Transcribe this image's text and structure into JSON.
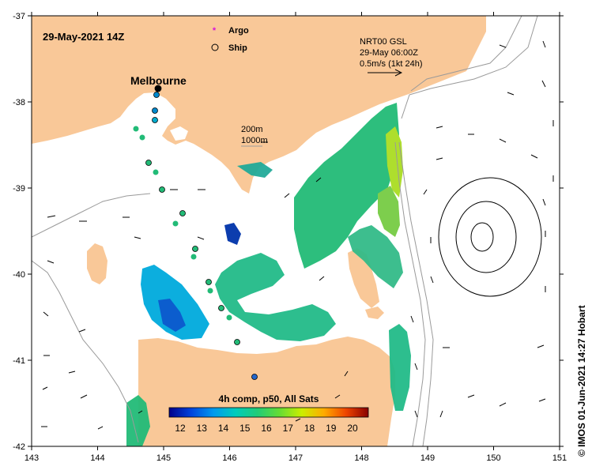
{
  "map": {
    "date_label": "29-May-2021 14Z",
    "city_label": "Melbourne",
    "x_ticks": [
      "143",
      "144",
      "145",
      "146",
      "147",
      "148",
      "149",
      "150",
      "151"
    ],
    "y_ticks": [
      "-37",
      "-38",
      "-39",
      "-40",
      "-41",
      "-42"
    ],
    "credit": "© IMOS 01-Jun-2021 14:27 Hobart",
    "colors": {
      "land": "#f9c898",
      "ocean": "#ffffff",
      "isobath": "#9a9a9a",
      "argo": "#d814d8",
      "ship": "#000000"
    }
  },
  "legend": {
    "argo_label": "Argo",
    "ship_label": "Ship",
    "isobath_200": "200m",
    "isobath_1000": "1000m"
  },
  "current_key": {
    "line1": "NRT00 GSL",
    "line2": "29-May 06:00Z",
    "line3": "0.5m/s (1kt 24h)"
  },
  "colorbar": {
    "title": "4h comp, p50, All Sats",
    "labels": [
      "12",
      "13",
      "14",
      "15",
      "16",
      "17",
      "18",
      "19",
      "20"
    ],
    "stops": [
      "#00008b",
      "#0044dd",
      "#0099ee",
      "#00ccbb",
      "#22cc77",
      "#66dd33",
      "#ccee00",
      "#ffaa00",
      "#ee4400",
      "#880000"
    ]
  }
}
